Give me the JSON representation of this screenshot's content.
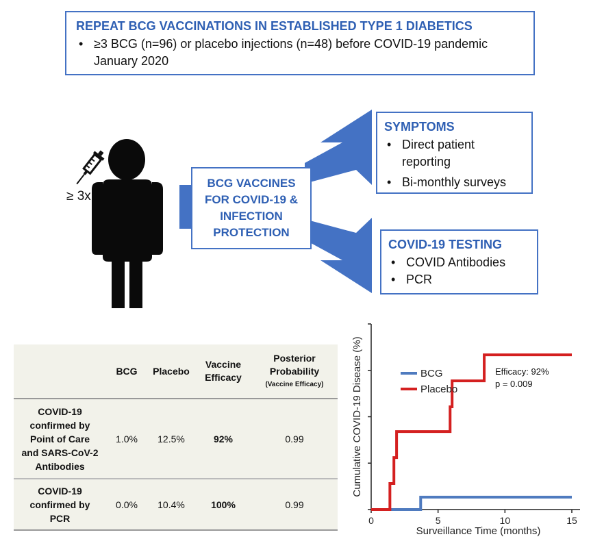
{
  "top_box": {
    "title": "REPEAT BCG VACCINATIONS IN ESTABLISHED TYPE 1 DIABETICS",
    "bullet_line1": "≥3 BCG (n=96) or placebo injections (n=48) before COVID-19 pandemic",
    "bullet_line2": "January 2020"
  },
  "dose_label": "≥ 3x",
  "center_box": {
    "line1": "BCG VACCINES",
    "line2": "FOR COVID-19 &",
    "line3": "INFECTION",
    "line4": "PROTECTION"
  },
  "symptoms_box": {
    "title": "SYMPTOMS",
    "item1_line1": "Direct patient",
    "item1_line2": "reporting",
    "item2": "Bi-monthly surveys"
  },
  "testing_box": {
    "title": "COVID-19 TESTING",
    "item1": "COVID Antibodies",
    "item2": "PCR"
  },
  "table": {
    "headers": {
      "bcg": "BCG",
      "placebo": "Placebo",
      "ve_line1": "Vaccine",
      "ve_line2": "Efficacy",
      "pp_line1": "Posterior",
      "pp_line2": "Probability",
      "pp_sub": "(Vaccine Efficacy)"
    },
    "rows": [
      {
        "label_lines": [
          "COVID-19",
          "confirmed by",
          "Point of Care",
          "and SARS-CoV-2",
          "Antibodies"
        ],
        "bcg": "1.0%",
        "placebo": "12.5%",
        "efficacy": "92%",
        "posterior": "0.99"
      },
      {
        "label_lines": [
          "COVID-19",
          "confirmed by",
          "PCR"
        ],
        "bcg": "0.0%",
        "placebo": "10.4%",
        "efficacy": "100%",
        "posterior": "0.99"
      }
    ]
  },
  "colors": {
    "accent_blue": "#4472c4",
    "title_blue": "#2e5fb3",
    "bcg_line": "#4f7bbf",
    "placebo_line": "#d42020",
    "table_bg": "#f2f2ea"
  },
  "chart_data": {
    "type": "line",
    "xlabel": "Surveillance Time (months)",
    "ylabel": "Cumulative COVID-19 Disease (%)",
    "xlim": [
      0,
      15
    ],
    "x_ticks": [
      0,
      5,
      10,
      15
    ],
    "y_tick_count": 4,
    "annotation_line1": "Efficacy: 92%",
    "annotation_line2": "p = 0.009",
    "legend_position": "top",
    "series": [
      {
        "name": "BCG",
        "color": "#4f7bbf",
        "x": [
          0,
          3.7,
          3.7,
          15
        ],
        "y": [
          0,
          0,
          1.0,
          1.0
        ]
      },
      {
        "name": "Placebo",
        "color": "#d42020",
        "x": [
          0,
          1.4,
          1.4,
          1.7,
          1.7,
          1.9,
          1.9,
          5.9,
          5.9,
          6.05,
          6.05,
          6.2,
          6.2,
          8.45,
          8.45,
          8.55,
          8.55,
          15
        ],
        "y": [
          0,
          0,
          2.1,
          2.1,
          4.2,
          4.2,
          6.3,
          6.3,
          8.3,
          8.3,
          10.4,
          10.4,
          10.4,
          10.4,
          12.5,
          12.5,
          12.5,
          12.5
        ]
      }
    ]
  }
}
